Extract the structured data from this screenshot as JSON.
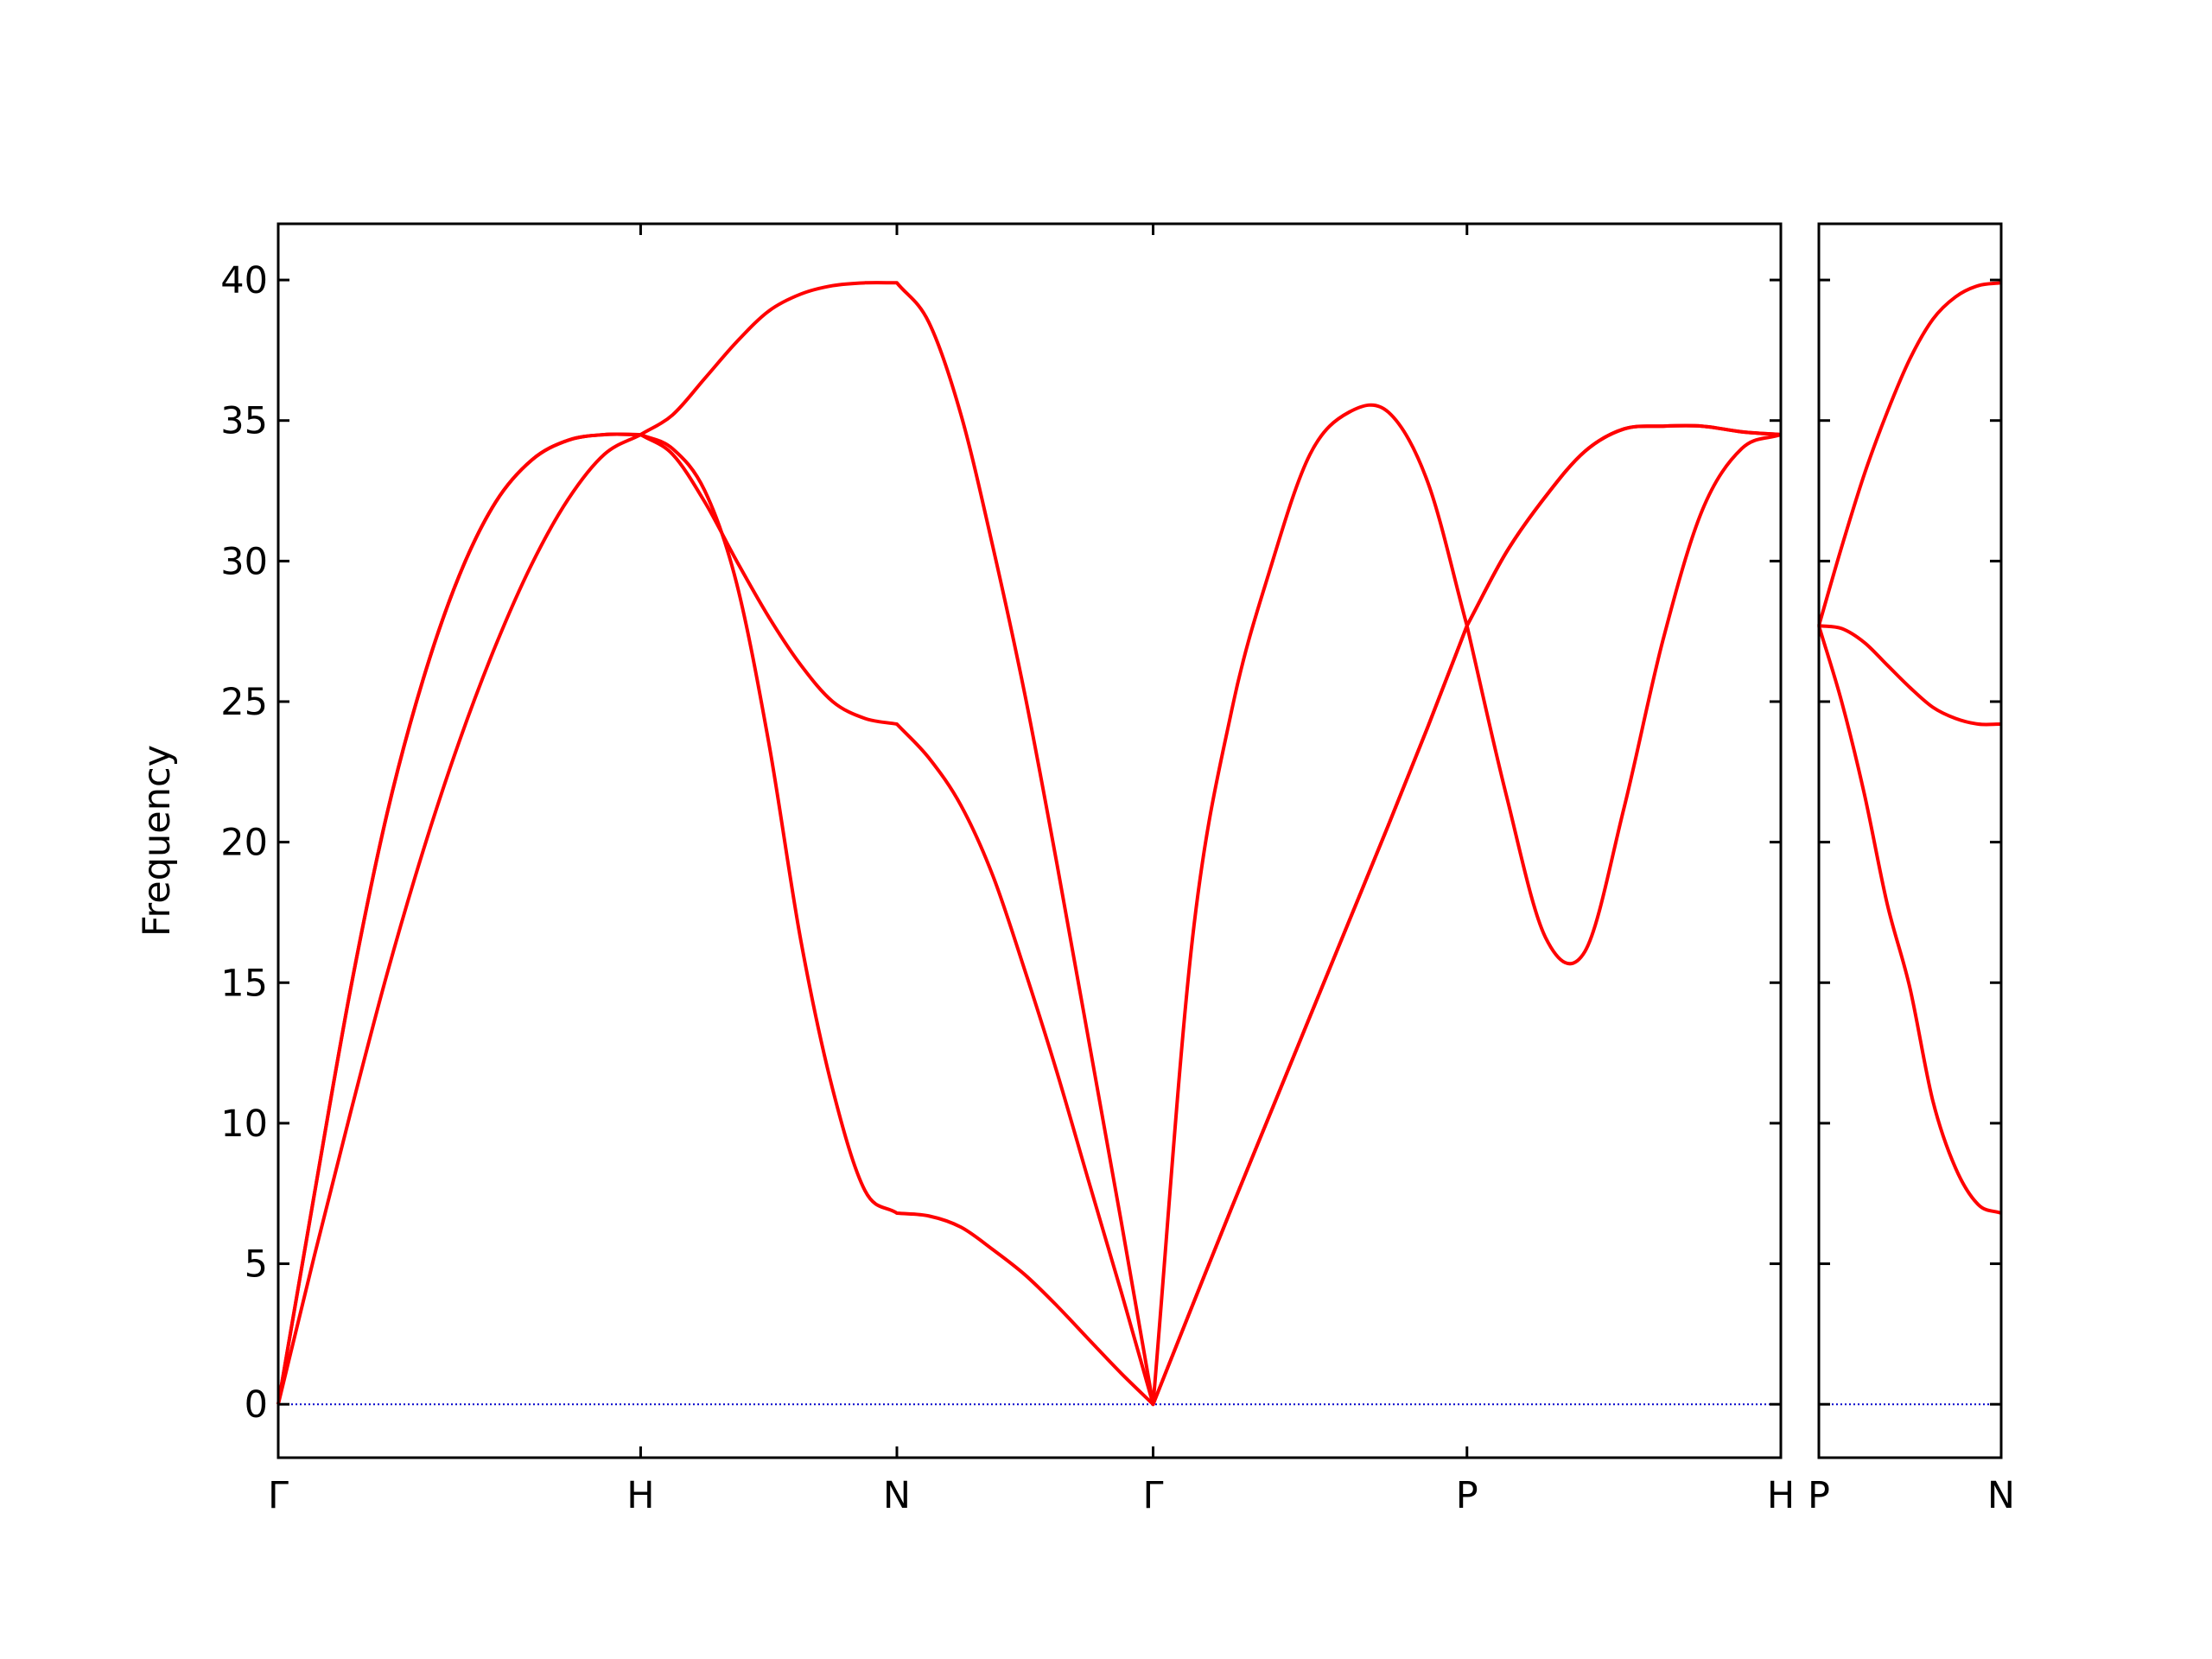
{
  "chart_data": [
    {
      "type": "line",
      "ylabel": "Frequency",
      "x": [
        0,
        0.1,
        0.2,
        0.3,
        0.4,
        0.5,
        0.6,
        0.7,
        0.8,
        0.9,
        1.0,
        1.088,
        1.177,
        1.265,
        1.354,
        1.442,
        1.53,
        1.619,
        1.707,
        1.795,
        1.884,
        1.972,
        2.061,
        2.149,
        2.237,
        2.326,
        2.414,
        2.522,
        2.631,
        2.739,
        2.847,
        2.955,
        3.063,
        3.172,
        3.28,
        3.388,
        3.497,
        3.605,
        3.713,
        3.821,
        3.929,
        4.038,
        4.146
      ],
      "xlim": [
        0,
        4.146
      ],
      "xticks": [
        {
          "value": 0,
          "label": "Γ"
        },
        {
          "value": 1.0,
          "label": "H"
        },
        {
          "value": 1.707,
          "label": "N"
        },
        {
          "value": 2.414,
          "label": "Γ"
        },
        {
          "value": 3.28,
          "label": "P"
        },
        {
          "value": 4.146,
          "label": "H"
        }
      ],
      "ylim": [
        -1.9,
        42
      ],
      "yticks": [
        0,
        5,
        10,
        15,
        20,
        25,
        30,
        35,
        40
      ],
      "ytick_labels": true,
      "hline": {
        "value": 0,
        "color": "#0000cc"
      },
      "series": [
        {
          "color": "#ff0000",
          "values": [
            0,
            5.3,
            10.4,
            15.3,
            19.7,
            23.6,
            27.0,
            29.9,
            32.2,
            33.8,
            34.5,
            34.0,
            32.5,
            29.2,
            23.5,
            16.5,
            11.2,
            7.6,
            6.8,
            6.7,
            6.3,
            5.5,
            4.6,
            3.5,
            2.3,
            1.1,
            0,
            3.5,
            7.0,
            10.4,
            13.8,
            17.2,
            20.6,
            24.1,
            27.7,
            21.7,
            16.6,
            16.1,
            21.2,
            27.2,
            31.8,
            34.0,
            34.5
          ]
        },
        {
          "color": "#ff0000",
          "values": [
            0,
            7.5,
            14.8,
            21.0,
            25.8,
            29.5,
            32.1,
            33.6,
            34.3,
            34.5,
            34.5,
            33.8,
            32.1,
            30.0,
            28.0,
            26.3,
            25.0,
            24.4,
            24.2,
            23.0,
            21.3,
            18.8,
            15.4,
            11.8,
            7.9,
            4.0,
            0,
            3.5,
            7.0,
            10.4,
            13.8,
            17.2,
            20.6,
            24.1,
            27.7,
            30.3,
            32.3,
            33.9,
            34.7,
            34.8,
            34.8,
            34.6,
            34.5
          ]
        },
        {
          "color": "#ff0000",
          "values": [
            0,
            7.5,
            14.8,
            21.0,
            25.8,
            29.5,
            32.1,
            33.6,
            34.3,
            34.5,
            34.5,
            35.2,
            36.5,
            37.8,
            38.9,
            39.5,
            39.8,
            39.9,
            39.9,
            38.5,
            35.2,
            30.5,
            25.2,
            19.2,
            12.9,
            6.5,
            0,
            16.5,
            24.7,
            29.8,
            33.8,
            35.3,
            35.3,
            32.8,
            27.7,
            30.3,
            32.3,
            33.9,
            34.7,
            34.8,
            34.8,
            34.6,
            34.5
          ]
        }
      ]
    },
    {
      "type": "line",
      "x": [
        0,
        0.0625,
        0.125,
        0.1875,
        0.25,
        0.3125,
        0.375,
        0.4375,
        0.5
      ],
      "xlim": [
        0,
        0.5
      ],
      "xticks": [
        {
          "value": 0,
          "label": "P"
        },
        {
          "value": 0.5,
          "label": "N"
        }
      ],
      "ylim": [
        -1.9,
        42
      ],
      "yticks": [
        0,
        5,
        10,
        15,
        20,
        25,
        30,
        35,
        40
      ],
      "ytick_labels": false,
      "hline": {
        "value": 0,
        "color": "#0000cc"
      },
      "series": [
        {
          "color": "#ff0000",
          "values": [
            27.7,
            25.0,
            21.7,
            17.8,
            14.8,
            10.8,
            8.4,
            7.1,
            6.8
          ]
        },
        {
          "color": "#ff0000",
          "values": [
            27.7,
            27.6,
            27.1,
            26.3,
            25.5,
            24.8,
            24.4,
            24.2,
            24.2
          ]
        },
        {
          "color": "#ff0000",
          "values": [
            27.7,
            30.5,
            33.1,
            35.3,
            37.2,
            38.6,
            39.4,
            39.8,
            39.9
          ]
        }
      ]
    }
  ]
}
